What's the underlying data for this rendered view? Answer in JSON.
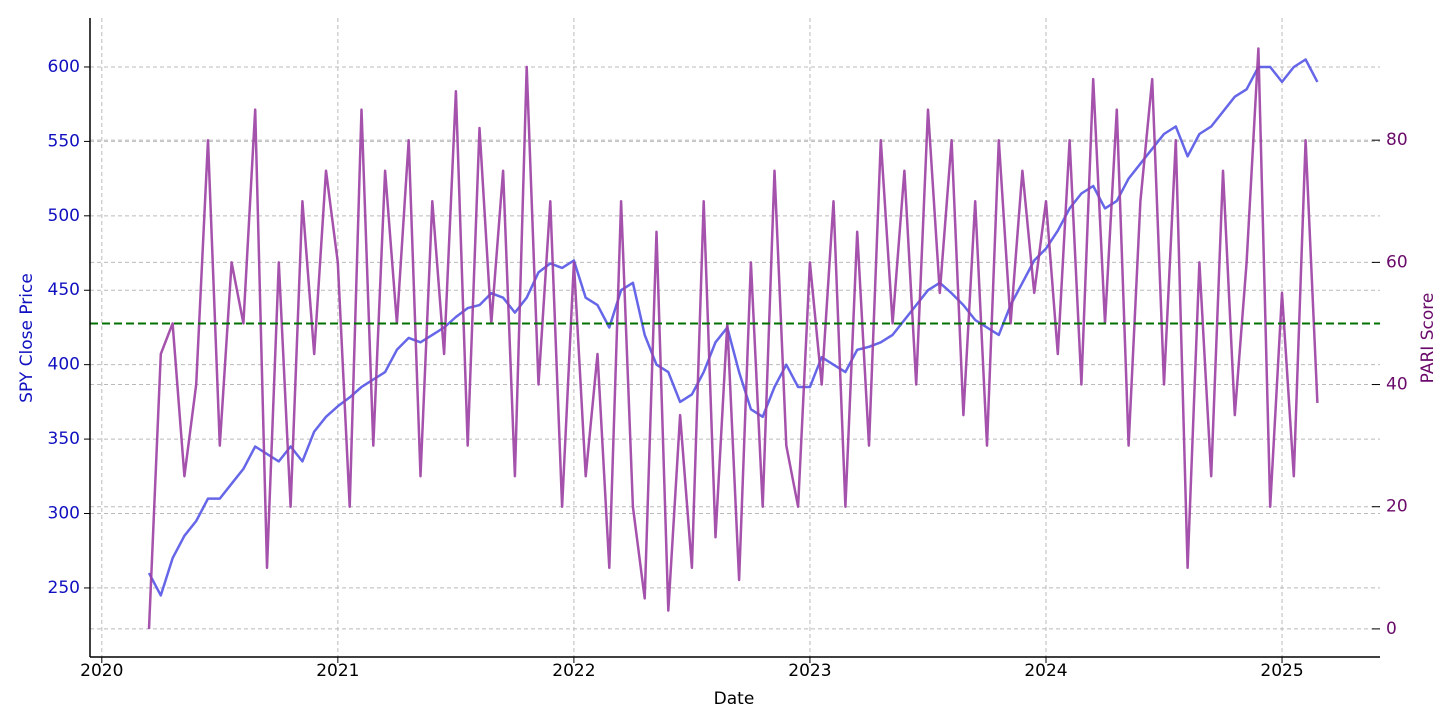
{
  "chart_data": {
    "type": "line",
    "x_label": "Date",
    "y_label": "SPY Close Price",
    "y2_label": "PARI Score",
    "y_label_color": "#1010c0",
    "y2_label_color": "#6a0a6a",
    "x": [
      2020.2,
      2020.25,
      2020.3,
      2020.35,
      2020.4,
      2020.45,
      2020.5,
      2020.55,
      2020.6,
      2020.65,
      2020.7,
      2020.75,
      2020.8,
      2020.85,
      2020.9,
      2020.95,
      2021.0,
      2021.05,
      2021.1,
      2021.15,
      2021.2,
      2021.25,
      2021.3,
      2021.35,
      2021.4,
      2021.45,
      2021.5,
      2021.55,
      2021.6,
      2021.65,
      2021.7,
      2021.75,
      2021.8,
      2021.85,
      2021.9,
      2021.95,
      2022.0,
      2022.05,
      2022.1,
      2022.15,
      2022.2,
      2022.25,
      2022.3,
      2022.35,
      2022.4,
      2022.45,
      2022.5,
      2022.55,
      2022.6,
      2022.65,
      2022.7,
      2022.75,
      2022.8,
      2022.85,
      2022.9,
      2022.95,
      2023.0,
      2023.05,
      2023.1,
      2023.15,
      2023.2,
      2023.25,
      2023.3,
      2023.35,
      2023.4,
      2023.45,
      2023.5,
      2023.55,
      2023.6,
      2023.65,
      2023.7,
      2023.75,
      2023.8,
      2023.85,
      2023.9,
      2023.95,
      2024.0,
      2024.05,
      2024.1,
      2024.15,
      2024.2,
      2024.25,
      2024.3,
      2024.35,
      2024.4,
      2024.45,
      2024.5,
      2024.55,
      2024.6,
      2024.65,
      2024.7,
      2024.75,
      2024.8,
      2024.85,
      2024.9,
      2024.95,
      2025.0,
      2025.05,
      2025.1,
      2025.15
    ],
    "series": [
      {
        "name": "SPY Close Price",
        "color": "#5555e6",
        "axis": "y",
        "values": [
          260,
          245,
          270,
          285,
          295,
          310,
          310,
          320,
          330,
          345,
          340,
          335,
          345,
          335,
          355,
          365,
          372,
          378,
          385,
          390,
          395,
          410,
          418,
          415,
          420,
          425,
          432,
          438,
          440,
          448,
          445,
          435,
          445,
          462,
          468,
          465,
          470,
          445,
          440,
          425,
          450,
          455,
          420,
          400,
          395,
          375,
          380,
          395,
          415,
          425,
          395,
          370,
          365,
          385,
          400,
          385,
          385,
          405,
          400,
          395,
          410,
          412,
          415,
          420,
          430,
          440,
          450,
          455,
          448,
          440,
          430,
          425,
          420,
          440,
          455,
          470,
          478,
          490,
          505,
          515,
          520,
          505,
          510,
          525,
          535,
          545,
          555,
          560,
          540,
          555,
          560,
          570,
          580,
          585,
          600,
          600,
          590,
          600,
          605,
          590
        ]
      },
      {
        "name": "PARI Score",
        "color": "#9b3fa3",
        "axis": "y2",
        "values": [
          0,
          45,
          50,
          25,
          40,
          80,
          30,
          60,
          50,
          85,
          10,
          60,
          20,
          70,
          45,
          75,
          60,
          20,
          85,
          30,
          75,
          50,
          80,
          25,
          70,
          45,
          88,
          30,
          82,
          50,
          75,
          25,
          92,
          40,
          70,
          20,
          60,
          25,
          45,
          10,
          70,
          20,
          5,
          65,
          3,
          35,
          10,
          70,
          15,
          50,
          8,
          60,
          20,
          75,
          30,
          20,
          60,
          40,
          70,
          20,
          65,
          30,
          80,
          50,
          75,
          40,
          85,
          55,
          80,
          35,
          70,
          30,
          80,
          50,
          75,
          55,
          70,
          45,
          80,
          40,
          90,
          50,
          85,
          30,
          70,
          90,
          40,
          80,
          10,
          60,
          25,
          75,
          35,
          60,
          95,
          20,
          55,
          25,
          80,
          37
        ]
      }
    ],
    "hlines": [
      {
        "value": 50,
        "axis": "y2",
        "color": "#007000"
      }
    ],
    "xlim": [
      2019.95,
      2025.415
    ],
    "xticks": [
      2020,
      2021,
      2022,
      2023,
      2024,
      2025
    ],
    "ylim": [
      203.6,
      632.9
    ],
    "yticks": [
      250,
      300,
      350,
      400,
      450,
      500,
      550,
      600
    ],
    "y2lim": [
      -4.6,
      100
    ],
    "y2ticks": [
      0,
      20,
      40,
      60,
      80
    ],
    "grid": true
  }
}
